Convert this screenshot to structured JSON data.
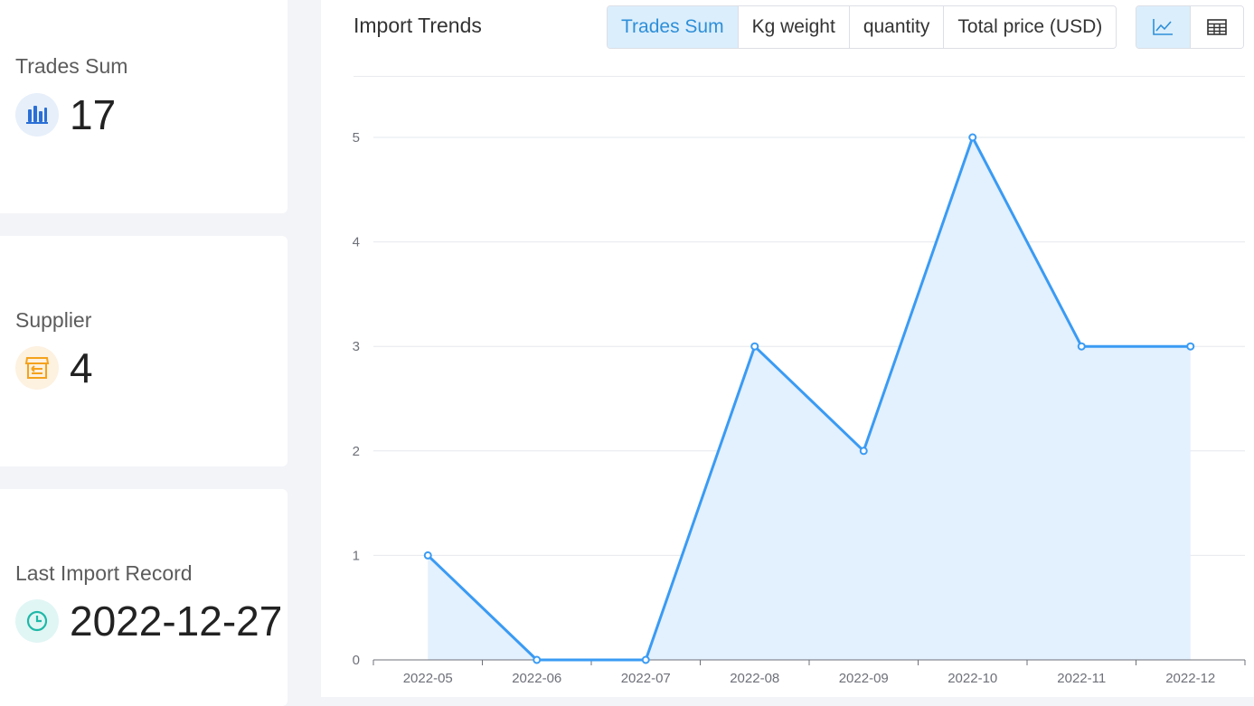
{
  "stats": {
    "trades": {
      "label": "Trades Sum",
      "value": "17",
      "icon": "bar-chart-icon",
      "icon_bg": "#e6effa",
      "icon_color": "#2a6fd6"
    },
    "supplier": {
      "label": "Supplier",
      "value": "4",
      "icon": "store-icon",
      "icon_bg": "#fdf1e0",
      "icon_color": "#f4a21c"
    },
    "last_import": {
      "label": "Last Import Record",
      "value": "2022-12-27",
      "icon": "clock-icon",
      "icon_bg": "#e0f6f4",
      "icon_color": "#1fb8a8"
    }
  },
  "panel": {
    "title": "Import Trends",
    "tabs": [
      "Trades Sum",
      "Kg weight",
      "quantity",
      "Total price (USD)"
    ],
    "active_tab": "Trades Sum",
    "view_buttons": [
      "line-chart-icon",
      "table-icon"
    ],
    "active_view": "line-chart-icon"
  },
  "colors": {
    "accent": "#2e8fd8",
    "series": "#3a9bf4",
    "area": "#e3f0fd"
  },
  "chart_data": {
    "type": "area",
    "title": "",
    "xlabel": "",
    "ylabel": "",
    "categories": [
      "2022-05",
      "2022-06",
      "2022-07",
      "2022-08",
      "2022-09",
      "2022-10",
      "2022-11",
      "2022-12"
    ],
    "values": [
      1,
      0,
      0,
      3,
      2,
      5,
      3,
      3
    ],
    "ylim": [
      0,
      5
    ],
    "yticks": [
      "0",
      "1",
      "2",
      "3",
      "4",
      "5"
    ],
    "grid": true
  }
}
